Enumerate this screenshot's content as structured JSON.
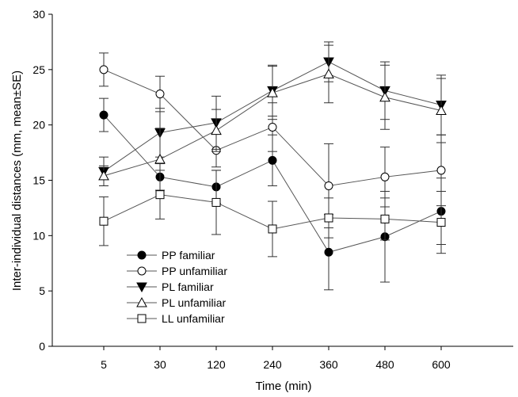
{
  "chart_data": {
    "type": "line",
    "title": "",
    "xlabel": "Time (min)",
    "ylabel": "Inter-individual distances (mm, mean±SE)",
    "categories": [
      "5",
      "30",
      "120",
      "240",
      "360",
      "480",
      "600"
    ],
    "ylim": [
      0,
      30
    ],
    "yticks": [
      0,
      5,
      10,
      15,
      20,
      25,
      30
    ],
    "grid": false,
    "legend_position": "bottom-left",
    "series": [
      {
        "name": "PP familiar",
        "marker": "filled-circle",
        "values": [
          20.9,
          15.3,
          14.4,
          16.8,
          8.5,
          9.9,
          12.2
        ],
        "errors": [
          1.5,
          1.2,
          1.5,
          2.3,
          3.4,
          4.1,
          3.0
        ]
      },
      {
        "name": "PP unfamiliar",
        "marker": "open-circle",
        "values": [
          25.0,
          22.8,
          17.7,
          19.8,
          14.5,
          15.3,
          15.9
        ],
        "errors": [
          1.5,
          1.6,
          1.5,
          2.2,
          3.8,
          2.7,
          3.2
        ]
      },
      {
        "name": "PL familiar",
        "marker": "filled-triangle-down",
        "values": [
          15.8,
          19.3,
          20.2,
          23.1,
          25.7,
          23.1,
          21.8
        ],
        "errors": [
          1.3,
          2.2,
          2.4,
          2.3,
          1.8,
          2.6,
          2.7
        ]
      },
      {
        "name": "PL unfamiliar",
        "marker": "open-triangle-up",
        "values": [
          15.4,
          16.9,
          19.5,
          22.9,
          24.6,
          22.5,
          21.3
        ],
        "errors": [
          0.9,
          2.8,
          1.9,
          2.4,
          2.6,
          2.9,
          2.9
        ]
      },
      {
        "name": "LL unfamiliar",
        "marker": "open-square",
        "values": [
          11.3,
          13.7,
          13.0,
          10.6,
          11.6,
          11.5,
          11.2
        ],
        "errors": [
          2.2,
          2.2,
          2.9,
          2.5,
          1.8,
          1.9,
          2.8
        ]
      }
    ]
  }
}
